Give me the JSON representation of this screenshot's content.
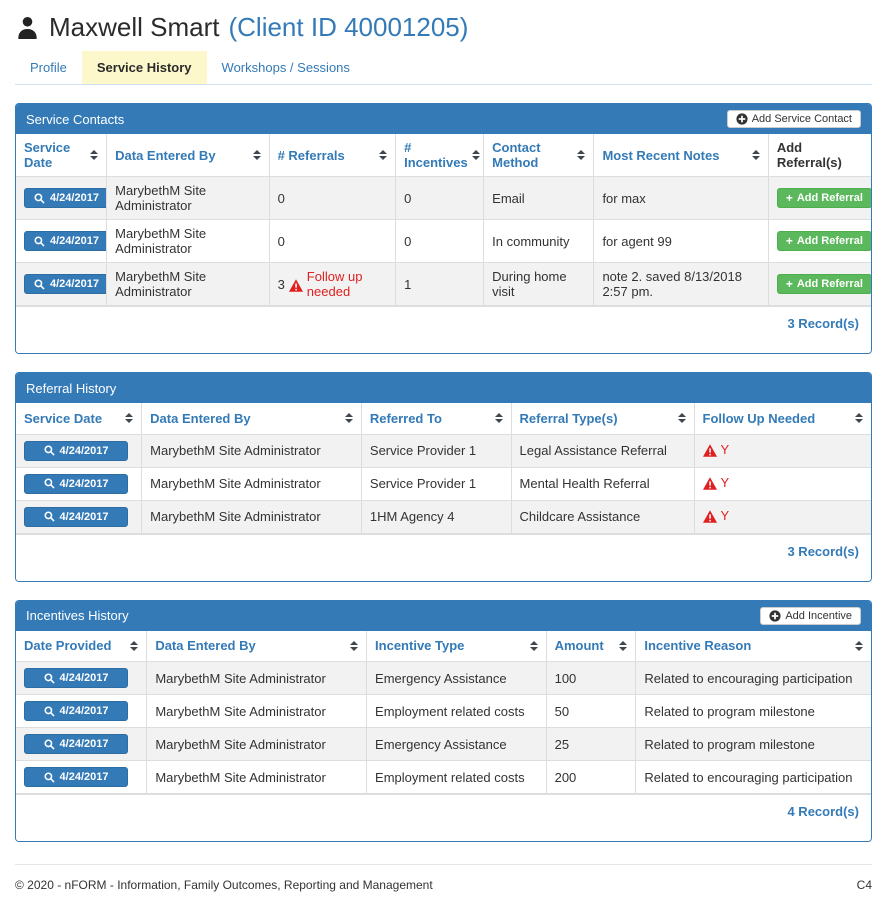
{
  "header": {
    "client_name": "Maxwell Smart",
    "client_id": "(Client ID 40001205)"
  },
  "tabs": {
    "profile": "Profile",
    "service_history": "Service History",
    "workshops": "Workshops / Sessions"
  },
  "panels": {
    "service_contacts": {
      "title": "Service Contacts",
      "add_button_label": "Add Service Contact",
      "columns": [
        {
          "label": "Service Date",
          "sortable": true
        },
        {
          "label": "Data Entered By",
          "sortable": true
        },
        {
          "label": "# Referrals",
          "sortable": true
        },
        {
          "label": "# Incentives",
          "sortable": true
        },
        {
          "label": "Contact Method",
          "sortable": true
        },
        {
          "label": "Most Recent Notes",
          "sortable": true
        },
        {
          "label": "Add Referral(s)",
          "sortable": false,
          "center": true
        }
      ],
      "rows": [
        {
          "date": "4/24/2017",
          "entered_by": "MarybethM Site Administrator",
          "referrals": "0",
          "warning": "",
          "incentives": "0",
          "contact_method": "Email",
          "notes": "for max"
        },
        {
          "date": "4/24/2017",
          "entered_by": "MarybethM Site Administrator",
          "referrals": "0",
          "warning": "",
          "incentives": "0",
          "contact_method": "In community",
          "notes": "for agent 99"
        },
        {
          "date": "4/24/2017",
          "entered_by": "MarybethM Site Administrator",
          "referrals": "3",
          "warning": "Follow up needed",
          "incentives": "1",
          "contact_method": "During home visit",
          "notes": "note 2. saved 8/13/2018 2:57 pm."
        }
      ],
      "add_referral_label": "Add Referral",
      "record_count": "3 Record(s)"
    },
    "referral_history": {
      "title": "Referral History",
      "columns": [
        {
          "label": "Service Date",
          "sortable": true
        },
        {
          "label": "Data Entered By",
          "sortable": true
        },
        {
          "label": "Referred To",
          "sortable": true
        },
        {
          "label": "Referral Type(s)",
          "sortable": true
        },
        {
          "label": "Follow Up Needed",
          "sortable": true
        }
      ],
      "rows": [
        {
          "date": "4/24/2017",
          "entered_by": "MarybethM Site Administrator",
          "referred_to": "Service Provider 1",
          "referral_type": "Legal Assistance Referral",
          "follow_up": "Y"
        },
        {
          "date": "4/24/2017",
          "entered_by": "MarybethM Site Administrator",
          "referred_to": "Service Provider 1",
          "referral_type": "Mental Health Referral",
          "follow_up": "Y"
        },
        {
          "date": "4/24/2017",
          "entered_by": "MarybethM Site Administrator",
          "referred_to": "1HM Agency 4",
          "referral_type": "Childcare Assistance",
          "follow_up": "Y"
        }
      ],
      "record_count": "3 Record(s)"
    },
    "incentives_history": {
      "title": "Incentives History",
      "add_button_label": "Add Incentive",
      "columns": [
        {
          "label": "Date Provided",
          "sortable": true
        },
        {
          "label": "Data Entered By",
          "sortable": true
        },
        {
          "label": "Incentive Type",
          "sortable": true
        },
        {
          "label": "Amount",
          "sortable": true
        },
        {
          "label": "Incentive Reason",
          "sortable": true
        }
      ],
      "rows": [
        {
          "date": "4/24/2017",
          "entered_by": "MarybethM Site Administrator",
          "type": "Emergency Assistance",
          "amount": "100",
          "reason": "Related to encouraging participation"
        },
        {
          "date": "4/24/2017",
          "entered_by": "MarybethM Site Administrator",
          "type": "Employment related costs",
          "amount": "50",
          "reason": "Related to program milestone"
        },
        {
          "date": "4/24/2017",
          "entered_by": "MarybethM Site Administrator",
          "type": "Emergency Assistance",
          "amount": "25",
          "reason": "Related to program milestone"
        },
        {
          "date": "4/24/2017",
          "entered_by": "MarybethM Site Administrator",
          "type": "Employment related costs",
          "amount": "200",
          "reason": "Related to encouraging participation"
        }
      ],
      "record_count": "4 Record(s)"
    }
  },
  "icons": {
    "user": "user-icon",
    "search": "search-icon",
    "plus_circle": "plus-circle-icon",
    "plus": "plus-icon",
    "warning": "warning-triangle-icon",
    "sort": "sort-icon"
  },
  "colors": {
    "primary": "#337ab7",
    "success_green": "#5cb85c",
    "danger_red": "#e02020",
    "active_tab_bg": "#fcf8cc",
    "stripe": "#f2f2f2"
  },
  "footer": {
    "copyright": "© 2020 - nFORM - Information, Family Outcomes, Reporting and Management",
    "page_code": "C4"
  }
}
